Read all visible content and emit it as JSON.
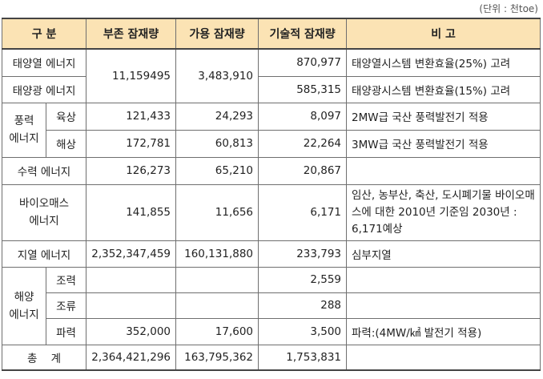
{
  "unit_note": "(단위 : 천toe)",
  "headers": {
    "category": "구 분",
    "potential": "부존 잠재량",
    "available": "가용 잠재량",
    "technical": "기술적 잠재량",
    "remarks": "비 고"
  },
  "rows": {
    "solar_thermal": {
      "label": "태양열 에너지",
      "technical": "870,977",
      "remark": "태양열시스템 변환효율(25%) 고려"
    },
    "solar_pv": {
      "label": "태양광 에너지",
      "technical": "585,315",
      "remark": "태양광시스템 변환효율(15%) 고려"
    },
    "solar_shared": {
      "potential": "11,159495",
      "available": "3,483,910"
    },
    "wind": {
      "label_line1": "풍력",
      "label_line2": "에너지",
      "onshore": {
        "label": "육상",
        "potential": "121,433",
        "available": "24,293",
        "technical": "8,097",
        "remark": "2MW급 국산 풍력발전기 적용"
      },
      "offshore": {
        "label": "해상",
        "potential": "172,781",
        "available": "60,813",
        "technical": "22,264",
        "remark": "3MW급 국산 풍력발전기 적용"
      }
    },
    "hydro": {
      "label": "수력 에너지",
      "potential": "126,273",
      "available": "65,210",
      "technical": "20,867",
      "remark": ""
    },
    "biomass": {
      "label_line1": "바이오매스",
      "label_line2": "에너지",
      "potential": "141,855",
      "available": "11,656",
      "technical": "6,171",
      "remark": "임산, 농부산, 축산, 도시폐기물 바이오매스에 대한 2010년 기준임 2030년 : 6,171예상"
    },
    "geothermal": {
      "label": "지열 에너지",
      "potential": "2,352,347,459",
      "available": "160,131,880",
      "technical": "233,793",
      "remark": "심부지열"
    },
    "ocean": {
      "label_line1": "해양",
      "label_line2": "에너지",
      "tidal": {
        "label": "조력",
        "potential": "",
        "available": "",
        "technical": "2,559",
        "remark": ""
      },
      "current": {
        "label": "조류",
        "potential": "",
        "available": "",
        "technical": "288",
        "remark": ""
      },
      "wave": {
        "label": "파력",
        "potential": "352,000",
        "available": "17,600",
        "technical": "3,500",
        "remark": "파력:(4MW/㎢ 발전기 적용)"
      }
    },
    "total": {
      "label": "총    계",
      "potential": "2,364,421,296",
      "available": "163,795,362",
      "technical": "1,753,831",
      "remark": ""
    }
  }
}
